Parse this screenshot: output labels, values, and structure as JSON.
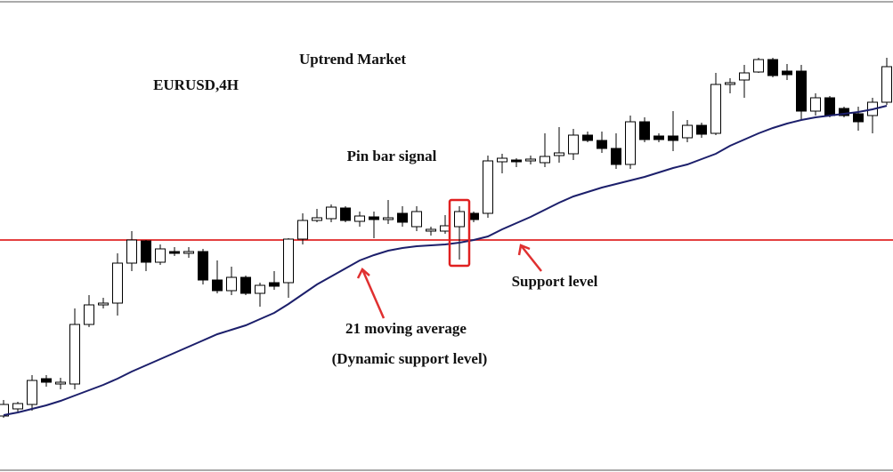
{
  "chart_data": {
    "type": "candlestick",
    "title": "Uptrend Market",
    "subtitle": "EURUSD,4H",
    "categories": [
      null,
      null,
      null,
      null,
      null,
      null,
      null,
      null,
      null,
      null,
      null,
      null,
      null,
      null,
      null,
      null,
      null,
      null,
      null,
      null,
      null,
      null,
      null,
      null,
      null,
      null,
      null,
      null,
      null,
      null,
      null,
      null,
      null,
      null,
      null,
      null,
      null,
      null,
      null,
      null,
      null,
      null,
      null,
      null,
      null,
      null,
      null,
      null,
      null,
      null,
      null,
      null,
      null,
      null,
      null,
      null,
      null,
      null,
      null,
      null,
      null,
      null,
      null
    ],
    "open": [
      63,
      71,
      76,
      105,
      99,
      99,
      166,
      188,
      190,
      235,
      260,
      236,
      248,
      246,
      248,
      216,
      204,
      219,
      201,
      213,
      213,
      262,
      283,
      285,
      297,
      282,
      287,
      284,
      291,
      276,
      271,
      271,
      276,
      291,
      291,
      349,
      351,
      350,
      348,
      356,
      358,
      379,
      373,
      364,
      346,
      394,
      378,
      378,
      376,
      390,
      381,
      436,
      441,
      450,
      464,
      451,
      451,
      406,
      421,
      409,
      403,
      401,
      416
    ],
    "high": [
      81,
      79,
      109,
      109,
      106,
      184,
      199,
      196,
      246,
      271,
      261,
      256,
      253,
      253,
      251,
      238,
      231,
      221,
      213,
      226,
      263,
      291,
      296,
      301,
      299,
      293,
      293,
      306,
      299,
      299,
      276,
      289,
      299,
      293,
      356,
      358,
      353,
      356,
      381,
      388,
      386,
      383,
      383,
      381,
      401,
      399,
      381,
      406,
      396,
      393,
      449,
      443,
      458,
      466,
      466,
      459,
      458,
      426,
      423,
      411,
      411,
      421,
      466
    ],
    "low": [
      61,
      68,
      69,
      96,
      93,
      93,
      163,
      184,
      176,
      226,
      226,
      233,
      243,
      241,
      211,
      201,
      199,
      199,
      186,
      205,
      196,
      256,
      281,
      281,
      281,
      276,
      263,
      279,
      276,
      271,
      266,
      268,
      239,
      281,
      286,
      336,
      343,
      346,
      343,
      348,
      351,
      371,
      359,
      341,
      341,
      371,
      371,
      361,
      371,
      376,
      379,
      426,
      421,
      449,
      444,
      441,
      396,
      401,
      399,
      399,
      384,
      381,
      413
    ],
    "close": [
      76,
      77,
      103,
      101,
      101,
      166,
      188,
      190,
      235,
      261,
      236,
      251,
      246,
      248,
      216,
      204,
      219,
      201,
      210,
      209,
      262,
      283,
      286,
      298,
      283,
      288,
      284,
      286,
      281,
      293,
      273,
      277,
      293,
      284,
      350,
      353,
      349,
      352,
      355,
      359,
      379,
      373,
      364,
      346,
      394,
      374,
      374,
      373,
      390,
      380,
      436,
      438,
      449,
      464,
      446,
      447,
      406,
      421,
      401,
      401,
      394,
      416,
      456
    ],
    "up_color": "#ffffff",
    "down_color": "#000000",
    "moving_average": {
      "color": "#1c1f6b",
      "values": [
        64,
        67,
        71,
        75,
        80,
        86,
        92,
        98,
        105,
        113,
        120,
        127,
        134,
        141,
        148,
        155,
        160,
        165,
        172,
        179,
        189,
        200,
        211,
        220,
        229,
        238,
        244,
        249,
        252,
        254,
        255,
        256,
        258,
        261,
        265,
        273,
        280,
        287,
        295,
        303,
        310,
        315,
        320,
        324,
        328,
        332,
        337,
        342,
        346,
        352,
        358,
        367,
        374,
        381,
        387,
        392,
        396,
        399,
        401,
        403,
        405,
        408,
        412
      ]
    },
    "support_level": {
      "value": 261,
      "color": "#e02424"
    },
    "highlight_index": 32,
    "ylim": [
      0,
      531
    ],
    "annotations": [
      "Pin bar signal",
      "Support level",
      "21 moving average",
      "(Dynamic support level)"
    ]
  }
}
